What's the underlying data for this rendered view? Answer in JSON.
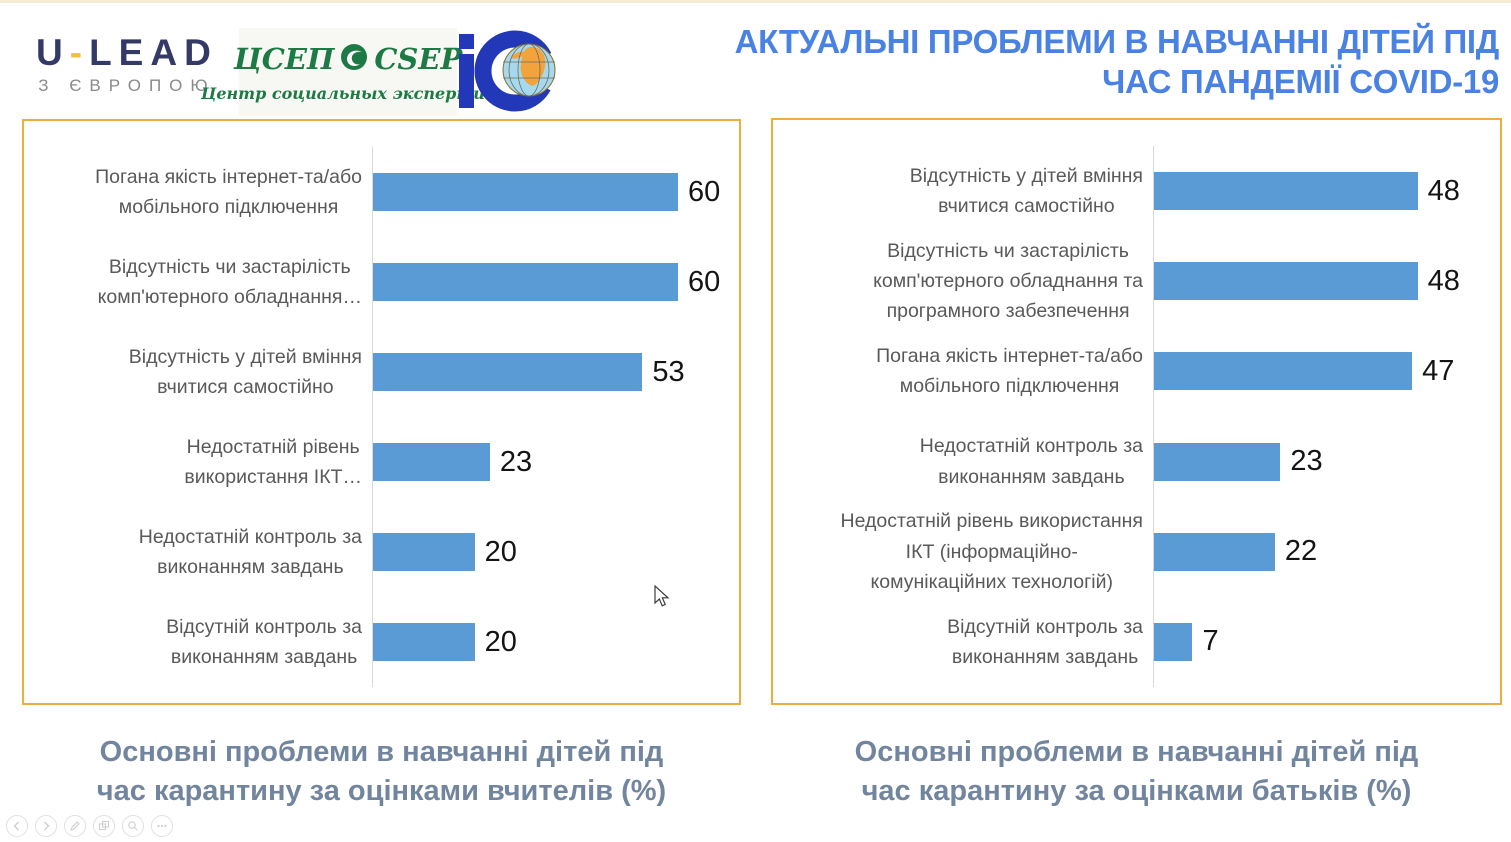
{
  "header": {
    "logos": {
      "ulead": {
        "word_u": "U",
        "dash": "-",
        "word_lead": "LEAD",
        "tagline": "З ЄВРОПОЮ",
        "navy": "#343A66",
        "dash_color": "#F5C042"
      },
      "csep": {
        "script_left": "ЦСЕП",
        "script_right": "CSEP",
        "subtitle": "Центр социальных экспертиз",
        "green": "#1E7A45"
      },
      "ic": {
        "letters": "iC",
        "blue": "#2238B8"
      }
    },
    "title": "АКТУАЛЬНІ ПРОБЛЕМИ В НАВЧАННІ ДІТЕЙ ПІД\nЧАС ПАНДЕМІЇ COVID-19",
    "title_color": "#4A82E4"
  },
  "chart_data": [
    {
      "type": "bar",
      "orientation": "horizontal",
      "title": "Основні проблеми в навчанні дітей під\nчас карантину за оцінками вчителів (%)",
      "categories": [
        "Погана якість інтернет-та/або\nмобільного підключення",
        "Відсутність чи застарілість\nкомп'ютерного обладнання…",
        "Відсутність у дітей вміння\nвчитися самостійно",
        "Недостатній рівень\nвикористання ІКТ…",
        "Недостатній контроль за\nвиконанням завдань",
        "Відсутній контроль за\nвиконанням завдань"
      ],
      "values": [
        60,
        60,
        53,
        23,
        20,
        20
      ],
      "xlim": [
        0,
        72
      ],
      "bar_color": "#5B9BD5",
      "value_labels": true,
      "grid": false,
      "legend": "none"
    },
    {
      "type": "bar",
      "orientation": "horizontal",
      "title": "Основні проблеми в навчанні дітей під\nчас карантину за оцінками батьків (%)",
      "categories": [
        "Відсутність у дітей вміння\nвчитися самостійно",
        "Відсутність чи застарілість\nкомп'ютерного обладнання та\nпрограмного забезпечення",
        "Погана якість інтернет-та/або\nмобільного підключення",
        "Недостатній контроль за\nвиконанням завдань",
        "Недостатній рівень використання\nІКТ (інформаційно-\nкомунікаційних технологій)",
        "Відсутній контроль за\nвиконанням завдань"
      ],
      "values": [
        48,
        48,
        47,
        23,
        22,
        7
      ],
      "xlim": [
        0,
        63
      ],
      "bar_color": "#5B9BD5",
      "value_labels": true,
      "grid": false,
      "legend": "none"
    }
  ],
  "presenter_toolbar": {
    "items": [
      {
        "name": "previous-slide"
      },
      {
        "name": "next-slide"
      },
      {
        "name": "pen-tools"
      },
      {
        "name": "see-all-slides"
      },
      {
        "name": "zoom-slide"
      },
      {
        "name": "more-options"
      }
    ]
  },
  "colors": {
    "bar": "#5B9BD5",
    "box_border": "#EDAD40",
    "label_gray": "#595959",
    "caption": "#72859E",
    "axis_line": "#D9D9D9"
  }
}
